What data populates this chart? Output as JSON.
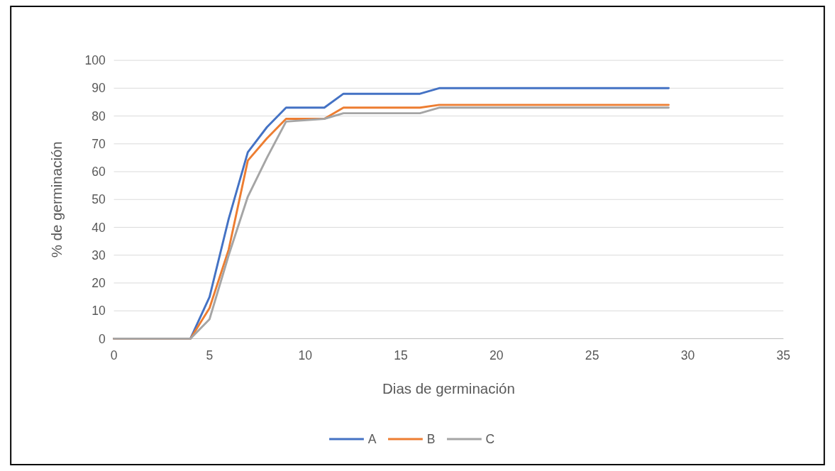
{
  "chart_data": {
    "type": "line",
    "xlabel": "Dias de germinación",
    "ylabel": "% de germinación",
    "x": [
      0,
      4,
      5,
      6,
      7,
      8,
      9,
      11,
      12,
      16,
      17,
      29
    ],
    "series": [
      {
        "name": "A",
        "color": "#4472c4",
        "values": [
          0,
          0,
          15,
          43,
          67,
          76,
          83,
          83,
          88,
          88,
          90,
          90
        ]
      },
      {
        "name": "B",
        "color": "#ed7d31",
        "values": [
          0,
          0,
          11,
          32,
          64,
          72,
          79,
          79,
          83,
          83,
          84,
          84
        ]
      },
      {
        "name": "C",
        "color": "#a5a5a5",
        "values": [
          0,
          0,
          7,
          30,
          51,
          65,
          78,
          79,
          81,
          81,
          83,
          83
        ]
      }
    ],
    "xlim": [
      0,
      35
    ],
    "xticks": [
      0,
      5,
      10,
      15,
      20,
      25,
      30,
      35
    ],
    "ylim": [
      0,
      100
    ],
    "yticks": [
      0,
      10,
      20,
      30,
      40,
      50,
      60,
      70,
      80,
      90,
      100
    ],
    "grid": "y",
    "legend": "bottom",
    "marker": "none",
    "line_style": "solid"
  }
}
